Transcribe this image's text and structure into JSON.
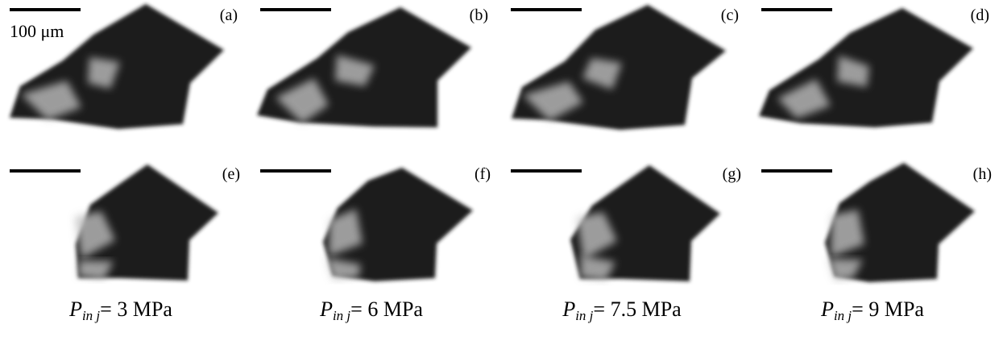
{
  "scale_label": "100 μm",
  "panels": [
    {
      "label": "(a)"
    },
    {
      "label": "(b)"
    },
    {
      "label": "(c)"
    },
    {
      "label": "(d)"
    },
    {
      "label": "(e)"
    },
    {
      "label": "(f)"
    },
    {
      "label": "(g)"
    },
    {
      "label": "(h)"
    }
  ],
  "pressures": [
    {
      "symbol": "P",
      "subscript": "in j",
      "text": "= 3 MPa"
    },
    {
      "symbol": "P",
      "subscript": "in j",
      "text": "= 6 MPa"
    },
    {
      "symbol": "P",
      "subscript": "in j",
      "text": "= 7.5 MPa"
    },
    {
      "symbol": "P",
      "subscript": "in j",
      "text": "= 9 MPa"
    }
  ]
}
